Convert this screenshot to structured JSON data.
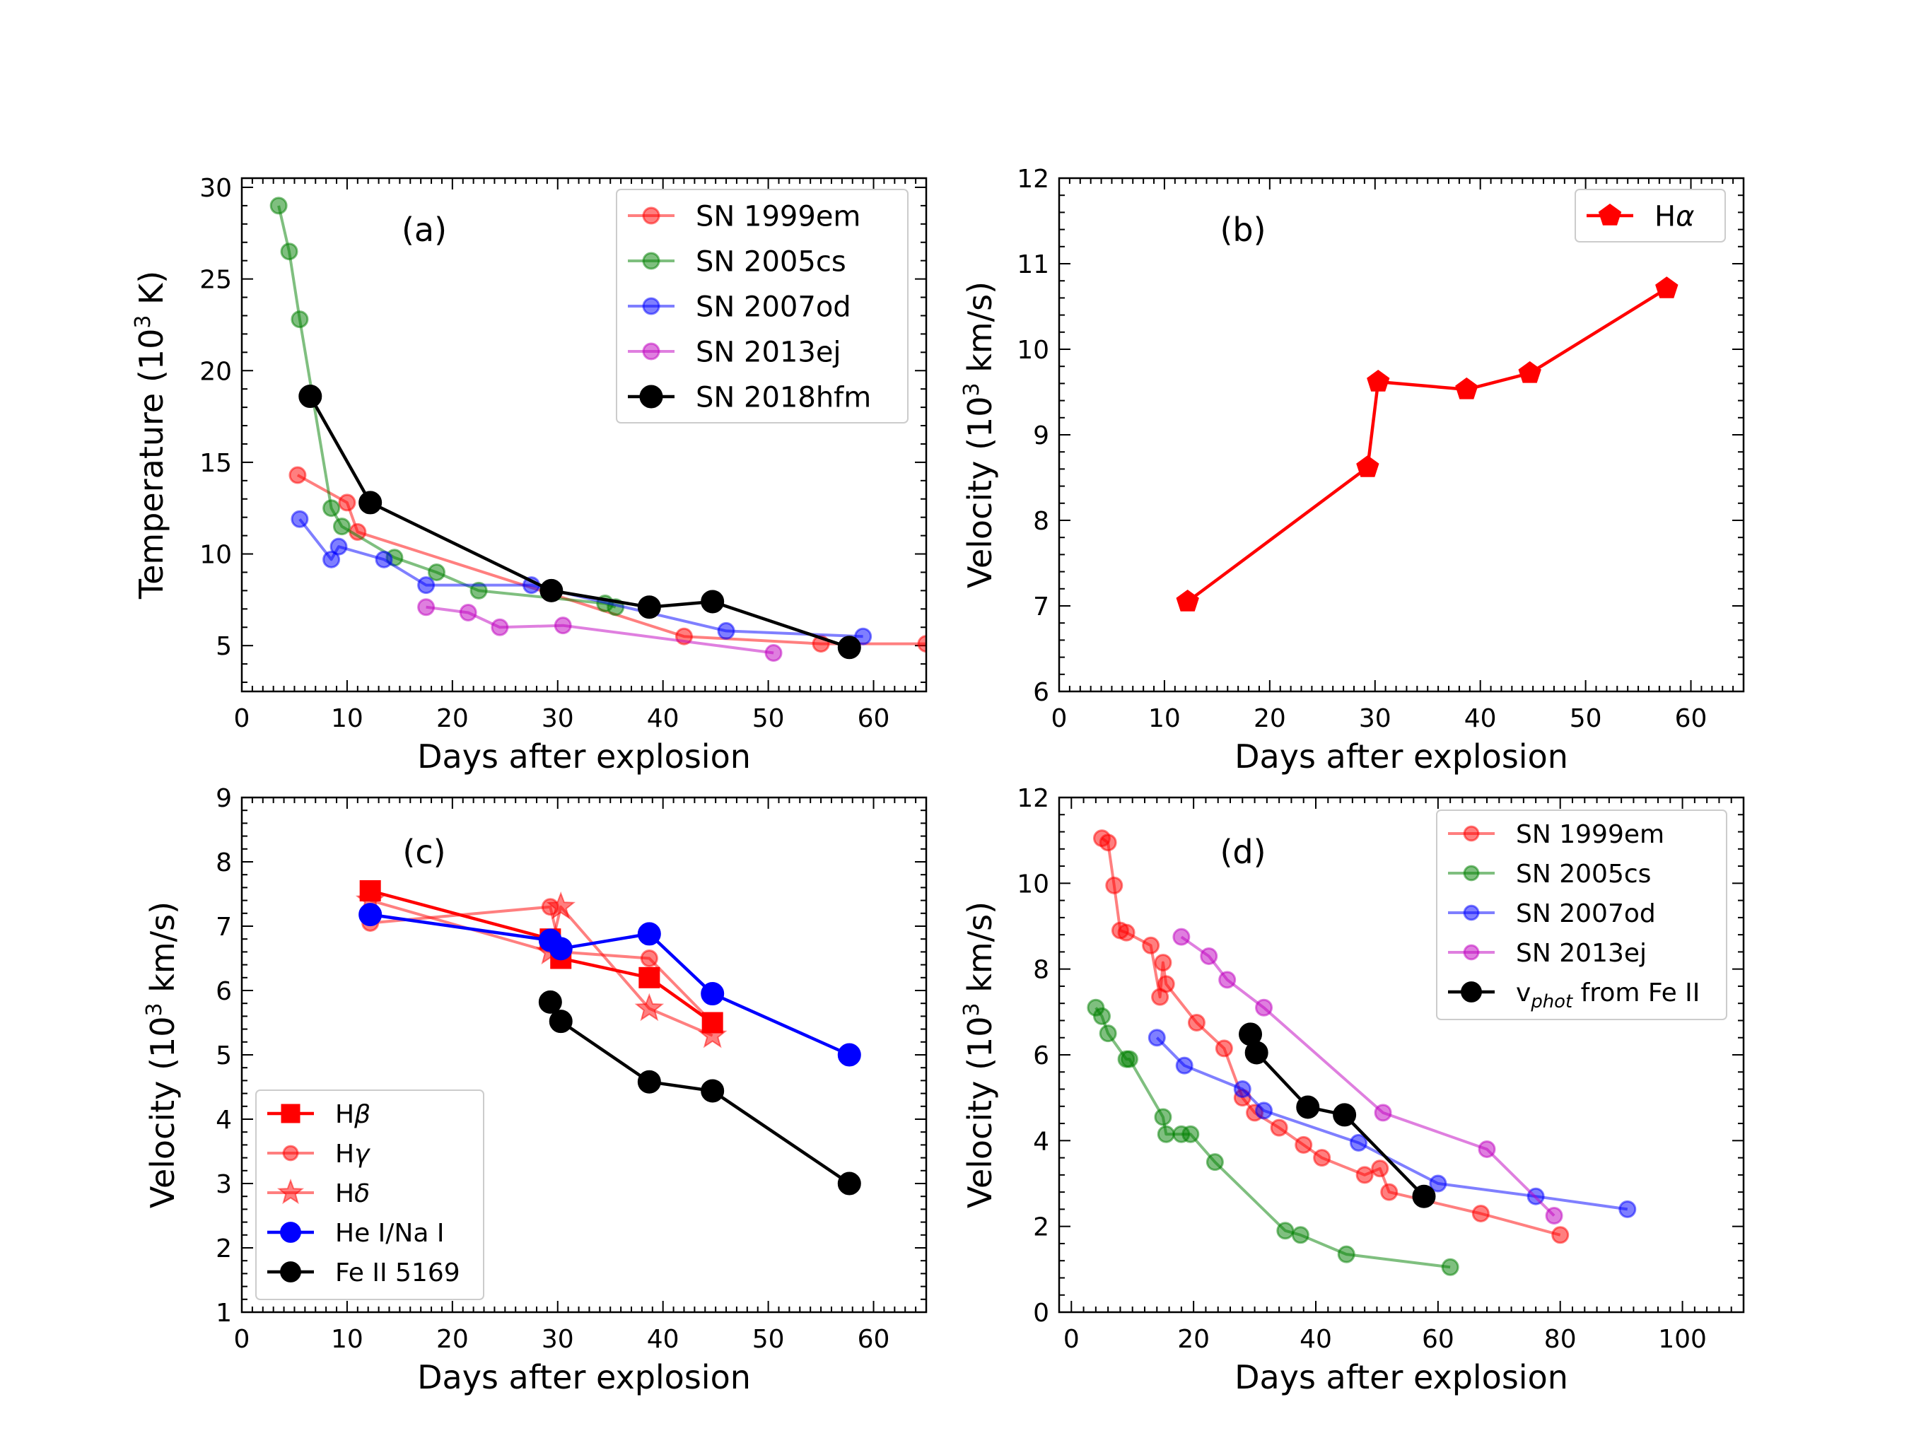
{
  "chart_data": [
    {
      "panel": "a",
      "type": "line",
      "panel_label": "(a)",
      "xlabel": "Days after explosion",
      "ylabel": "Temperature (10^3 K)",
      "xlim": [
        0,
        65
      ],
      "ylim": [
        2.5,
        30.5
      ],
      "xticks": [
        0,
        10,
        20,
        30,
        40,
        50,
        60
      ],
      "yticks": [
        5,
        10,
        15,
        20,
        25,
        30
      ],
      "legend_position": "top-right",
      "series": [
        {
          "name": "SN 1999em",
          "color": "#ff0000",
          "alpha": 0.5,
          "marker": "circle",
          "x": [
            5.3,
            10,
            11,
            42,
            55,
            65
          ],
          "y": [
            14.3,
            12.8,
            11.2,
            5.5,
            5.1,
            5.1
          ]
        },
        {
          "name": "SN 2005cs",
          "color": "#008000",
          "alpha": 0.5,
          "marker": "circle",
          "x": [
            3.5,
            4.5,
            5.5,
            8.5,
            9.5,
            14.5,
            18.5,
            22.5,
            34.5,
            35.5
          ],
          "y": [
            29.0,
            26.5,
            22.8,
            12.5,
            11.5,
            9.8,
            9.0,
            8.0,
            7.3,
            7.1
          ]
        },
        {
          "name": "SN 2007od",
          "color": "#0000ff",
          "alpha": 0.5,
          "marker": "circle",
          "x": [
            5.5,
            8.5,
            9.2,
            13.5,
            17.5,
            27.5,
            46.0,
            59.0
          ],
          "y": [
            11.9,
            9.7,
            10.4,
            9.7,
            8.3,
            8.3,
            5.8,
            5.5
          ]
        },
        {
          "name": "SN 2013ej",
          "color": "#c000c0",
          "alpha": 0.5,
          "marker": "circle",
          "x": [
            17.5,
            21.5,
            24.5,
            30.5,
            50.5
          ],
          "y": [
            7.1,
            6.8,
            6.0,
            6.1,
            4.6
          ]
        },
        {
          "name": "SN 2018hfm",
          "color": "#000000",
          "alpha": 1,
          "marker": "big-circle",
          "x": [
            6.5,
            12.2,
            29.4,
            38.7,
            44.7,
            57.7
          ],
          "y": [
            18.6,
            12.8,
            8.0,
            7.1,
            7.4,
            4.9
          ]
        }
      ]
    },
    {
      "panel": "b",
      "type": "line",
      "panel_label": "(b)",
      "xlabel": "Days after explosion",
      "ylabel": "Velocity (10^3 km/s)",
      "xlim": [
        0,
        65
      ],
      "ylim": [
        6,
        12
      ],
      "xticks": [
        0,
        10,
        20,
        30,
        40,
        50,
        60
      ],
      "yticks": [
        6,
        7,
        8,
        9,
        10,
        11,
        12
      ],
      "legend_position": "top-right",
      "series": [
        {
          "name": "Hα",
          "color": "#ff0000",
          "alpha": 1,
          "marker": "pentagon",
          "x": [
            12.2,
            29.3,
            30.3,
            38.7,
            44.7,
            57.7
          ],
          "y": [
            7.05,
            8.62,
            9.62,
            9.53,
            9.72,
            10.71
          ]
        }
      ]
    },
    {
      "panel": "c",
      "type": "line",
      "panel_label": "(c)",
      "xlabel": "Days after explosion",
      "ylabel": "Velocity (10^3 km/s)",
      "xlim": [
        0,
        65
      ],
      "ylim": [
        1,
        9
      ],
      "xticks": [
        0,
        10,
        20,
        30,
        40,
        50,
        60
      ],
      "yticks": [
        1,
        2,
        3,
        4,
        5,
        6,
        7,
        8,
        9
      ],
      "legend_position": "bottom-left",
      "series": [
        {
          "name": "Hβ",
          "color": "#ff0000",
          "alpha": 1,
          "marker": "square",
          "x": [
            12.2,
            29.3,
            30.3,
            38.7,
            44.7
          ],
          "y": [
            7.55,
            6.8,
            6.5,
            6.2,
            5.5
          ]
        },
        {
          "name": "Hγ",
          "color": "#ff0000",
          "alpha": 0.5,
          "marker": "circle",
          "x": [
            12.2,
            29.3,
            30.3,
            38.7,
            44.7
          ],
          "y": [
            7.05,
            7.3,
            6.6,
            6.5,
            5.5
          ]
        },
        {
          "name": "Hδ",
          "color": "#ff0000",
          "alpha": 0.5,
          "marker": "star",
          "x": [
            12.2,
            29.3,
            30.3,
            38.7,
            44.7
          ],
          "y": [
            7.4,
            6.6,
            7.3,
            5.72,
            5.3
          ]
        },
        {
          "name": "He I/Na I",
          "color": "#0000ff",
          "alpha": 1,
          "marker": "big-circle",
          "x": [
            12.2,
            29.3,
            30.3,
            38.7,
            44.7,
            57.7
          ],
          "y": [
            7.18,
            6.78,
            6.65,
            6.88,
            5.95,
            5.0
          ]
        },
        {
          "name": "Fe II 5169",
          "color": "#000000",
          "alpha": 1,
          "marker": "big-circle",
          "x": [
            29.3,
            30.3,
            38.7,
            44.7,
            57.7
          ],
          "y": [
            5.82,
            5.52,
            4.58,
            4.44,
            3.0
          ]
        }
      ]
    },
    {
      "panel": "d",
      "type": "line",
      "panel_label": "(d)",
      "xlabel": "Days after explosion",
      "ylabel": "Velocity (10^3 km/s)",
      "xlim": [
        -2,
        110
      ],
      "ylim": [
        0,
        12
      ],
      "xticks": [
        0,
        20,
        40,
        60,
        80,
        100
      ],
      "yticks": [
        0,
        2,
        4,
        6,
        8,
        10,
        12
      ],
      "legend_position": "top-right",
      "series": [
        {
          "name": "SN 1999em",
          "color": "#ff0000",
          "alpha": 0.5,
          "marker": "circle",
          "x": [
            5,
            6,
            7,
            8,
            9,
            13,
            14.5,
            15,
            15.5,
            20.5,
            25,
            28,
            30,
            34,
            38,
            41,
            48,
            50.5,
            52,
            67,
            80
          ],
          "y": [
            11.05,
            10.95,
            9.95,
            8.9,
            8.85,
            8.55,
            7.35,
            8.15,
            7.65,
            6.75,
            6.15,
            5.0,
            4.65,
            4.3,
            3.9,
            3.6,
            3.2,
            3.35,
            2.8,
            2.3,
            1.8
          ]
        },
        {
          "name": "SN 2005cs",
          "color": "#008000",
          "alpha": 0.5,
          "marker": "circle",
          "x": [
            4,
            5,
            6,
            9,
            9.5,
            15,
            15.5,
            18,
            19.5,
            23.5,
            35,
            37.5,
            45,
            62
          ],
          "y": [
            7.1,
            6.9,
            6.5,
            5.9,
            5.9,
            4.55,
            4.15,
            4.15,
            4.15,
            3.5,
            1.9,
            1.8,
            1.35,
            1.05
          ]
        },
        {
          "name": "SN 2007od",
          "color": "#0000ff",
          "alpha": 0.5,
          "marker": "circle",
          "x": [
            14,
            18.5,
            28,
            31.5,
            47,
            60,
            76,
            91
          ],
          "y": [
            6.4,
            5.75,
            5.2,
            4.7,
            3.95,
            3.0,
            2.7,
            2.4
          ]
        },
        {
          "name": "SN 2013ej",
          "color": "#c000c0",
          "alpha": 0.5,
          "marker": "circle",
          "x": [
            18,
            22.5,
            25.5,
            31.5,
            51,
            68,
            79
          ],
          "y": [
            8.75,
            8.3,
            7.75,
            7.1,
            4.65,
            3.8,
            2.25
          ]
        },
        {
          "name": "v_phot from Fe II",
          "color": "#000000",
          "alpha": 1,
          "marker": "big-circle",
          "x": [
            29.3,
            30.3,
            38.7,
            44.7,
            57.7
          ],
          "y": [
            6.48,
            6.05,
            4.78,
            4.6,
            2.7
          ]
        }
      ]
    }
  ],
  "legend_labels": {
    "a": [
      "SN 1999em",
      "SN 2005cs",
      "SN 2007od",
      "SN 2013ej",
      "SN 2018hfm"
    ],
    "b": [
      "Hα"
    ],
    "c": [
      "Hβ",
      "Hγ",
      "Hδ",
      "He I/Na I",
      "Fe II 5169"
    ],
    "d": [
      "SN 1999em",
      "SN 2005cs",
      "SN 2007od",
      "SN 2013ej",
      "v_phot from Fe II"
    ]
  }
}
